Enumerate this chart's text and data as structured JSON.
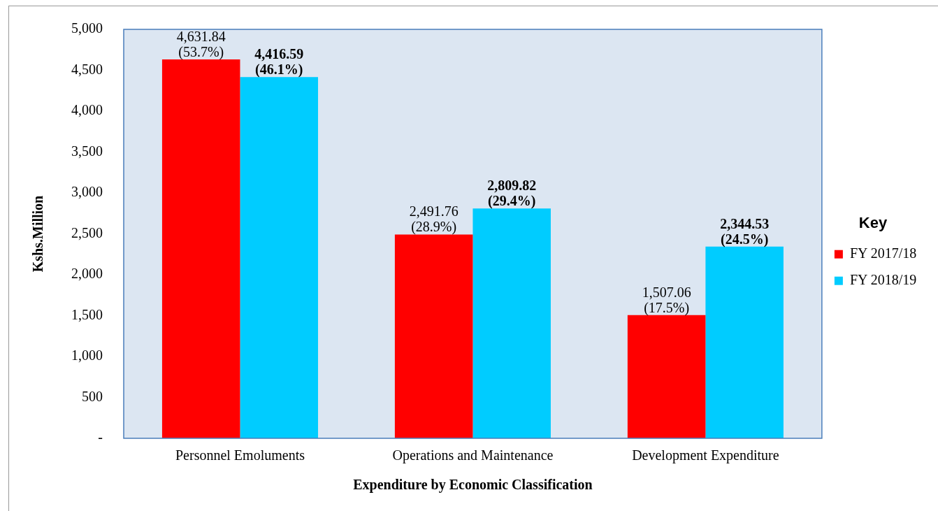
{
  "chart_data": {
    "type": "bar",
    "xlabel": "Expenditure by Economic Classification",
    "ylabel": "Kshs.Million",
    "legend_title": "Key",
    "legend": "right",
    "grid": false,
    "categories": [
      "Personnel Emoluments",
      "Operations and Maintenance",
      "Development Expenditure"
    ],
    "ylim": [
      0,
      5000
    ],
    "yticks": [
      {
        "value": 0,
        "label": "-"
      },
      {
        "value": 500,
        "label": "500"
      },
      {
        "value": 1000,
        "label": "1,000"
      },
      {
        "value": 1500,
        "label": "1,500"
      },
      {
        "value": 2000,
        "label": "2,000"
      },
      {
        "value": 2500,
        "label": "2,500"
      },
      {
        "value": 3000,
        "label": "3,000"
      },
      {
        "value": 3500,
        "label": "3,500"
      },
      {
        "value": 4000,
        "label": "4,000"
      },
      {
        "value": 4500,
        "label": "4,500"
      },
      {
        "value": 5000,
        "label": "5,000"
      }
    ],
    "series": [
      {
        "name": "FY 2017/18",
        "color": "#ff0000",
        "values": [
          4631.84,
          2491.76,
          1507.06
        ],
        "value_labels": [
          "4,631.84\n(53.7%)",
          "2,491.76\n(28.9%)",
          "1,507.06\n(17.5%)"
        ]
      },
      {
        "name": "FY 2018/19",
        "color": "#00ccff",
        "values": [
          4416.59,
          2809.82,
          2344.53
        ],
        "value_labels": [
          "4,416.59\n(46.1%)",
          "2,809.82\n(29.4%)",
          "2,344.53\n(24.5%)"
        ]
      }
    ]
  }
}
